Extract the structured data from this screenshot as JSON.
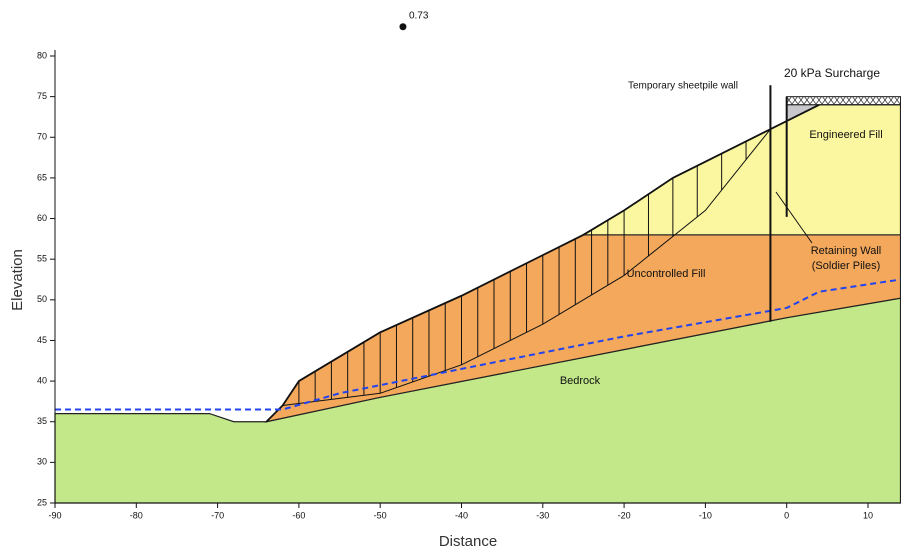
{
  "chart_data": {
    "type": "section",
    "x_label": "Distance",
    "y_label": "Elevation",
    "xlim": [
      -90,
      14
    ],
    "ylim": [
      25,
      80
    ],
    "xticks": [
      -90,
      -80,
      -70,
      -60,
      -50,
      -40,
      -30,
      -20,
      -10,
      0,
      10
    ],
    "yticks": [
      25,
      30,
      35,
      40,
      45,
      50,
      55,
      60,
      65,
      70,
      75,
      80
    ],
    "regions": [
      {
        "name": "Bedrock",
        "color": "#c2e88a",
        "x": [
          -90,
          -71,
          -68,
          -64,
          -50,
          0,
          14,
          14,
          -90
        ],
        "y": [
          36,
          36,
          35,
          35,
          38,
          47.8,
          50.2,
          25,
          25
        ]
      },
      {
        "name": "Uncontrolled Fill",
        "color": "#f4a85c",
        "x": [
          -64,
          -62,
          -60,
          -55,
          -50,
          -40,
          -30,
          -25,
          14,
          14,
          0,
          -50
        ],
        "y": [
          35,
          37,
          40,
          43,
          46,
          50.5,
          55.5,
          58,
          58,
          50.2,
          47.8,
          38
        ]
      },
      {
        "name": "Engineered Fill",
        "color": "#fbf7a0",
        "x": [
          -25,
          -20,
          -14,
          -10,
          -2,
          0,
          4,
          14,
          14
        ],
        "y": [
          58,
          61,
          65,
          67,
          71,
          72,
          74,
          74,
          58
        ]
      }
    ],
    "wedge": {
      "color": "#c8c8cc",
      "x": [
        0,
        4,
        0
      ],
      "y": [
        72,
        74,
        74
      ]
    },
    "ground_surface": {
      "x": [
        -64,
        -62,
        -60,
        -55,
        -50,
        -40,
        -30,
        -25,
        -20,
        -14,
        -10,
        -2,
        0,
        4
      ],
      "y": [
        35,
        37,
        40,
        43,
        46,
        50.5,
        55.5,
        58,
        61,
        65,
        67,
        71,
        72,
        74
      ]
    },
    "slip_surface": {
      "x": [
        -62,
        -50,
        -40,
        -30,
        -20,
        -10,
        -2
      ],
      "y": [
        37,
        38.5,
        42,
        47,
        53,
        61,
        71
      ]
    },
    "slices": [
      -60,
      -58,
      -56,
      -54,
      -52,
      -50,
      -48,
      -46,
      -44,
      -42,
      -40,
      -38,
      -36,
      -34,
      -32,
      -30,
      -28,
      -26,
      -24,
      -22,
      -20,
      -17,
      -14,
      -11,
      -8,
      -5
    ],
    "water_table": {
      "color": "#2244ee",
      "x": [
        -90,
        -62,
        -55,
        -40,
        -20,
        0,
        4,
        14
      ],
      "y": [
        36.5,
        36.5,
        38.5,
        41.5,
        45.5,
        49,
        51,
        52.5
      ]
    },
    "surcharge": {
      "label": "20 kPa Surcharge",
      "x": [
        0,
        14
      ],
      "y": [
        74,
        75
      ]
    },
    "retaining_wall": {
      "label": [
        "Retaining Wall",
        "(Soldier Piles)"
      ],
      "x": -2,
      "y": [
        47.3,
        76.4
      ]
    },
    "sheetpile_wall": {
      "label": "Temporary sheetpile wall",
      "x": 0,
      "y": [
        60.2,
        75
      ]
    },
    "slip_center": {
      "x": -47.2,
      "y": 83.6,
      "factor_of_safety": 0.73
    }
  }
}
